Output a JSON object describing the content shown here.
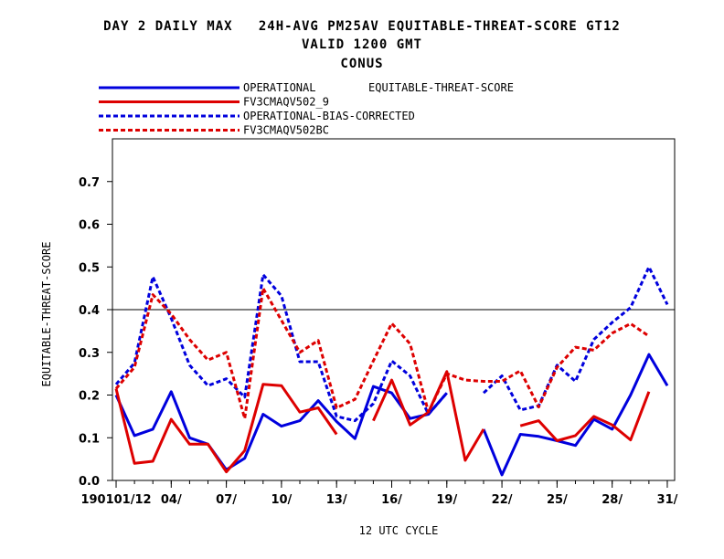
{
  "titles": {
    "line1": "DAY 2 DAILY MAX   24H-AVG PM25AV EQUITABLE-THREAT-SCORE GT12",
    "line2": "VALID 1200 GMT",
    "line3": "CONUS"
  },
  "chart_data": {
    "type": "line",
    "title": "DAY 2 DAILY MAX   24H-AVG PM25AV EQUITABLE-THREAT-SCORE GT12",
    "ylabel": "EQUITABLE-THREAT-SCORE",
    "xlabel": "12 UTC CYCLE",
    "legend_title": "EQUITABLE-THREAT-SCORE",
    "ylim": [
      0,
      0.8
    ],
    "yticks": [
      "0.0",
      "0.1",
      "0.2",
      "0.3",
      "0.4",
      "0.5",
      "0.6",
      "0.7"
    ],
    "yticks_values": [
      0,
      0.1,
      0.2,
      0.3,
      0.4,
      0.5,
      0.6,
      0.7
    ],
    "xlim": [
      0.8,
      31.4
    ],
    "x_ticks": [
      {
        "x": 1,
        "label": "190101/12"
      },
      {
        "x": 4,
        "label": "04/"
      },
      {
        "x": 7,
        "label": "07/"
      },
      {
        "x": 10,
        "label": "10/"
      },
      {
        "x": 13,
        "label": "13/"
      },
      {
        "x": 16,
        "label": "16/"
      },
      {
        "x": 19,
        "label": "19/"
      },
      {
        "x": 22,
        "label": "22/"
      },
      {
        "x": 25,
        "label": "25/"
      },
      {
        "x": 28,
        "label": "28/"
      },
      {
        "x": 31,
        "label": "31/"
      }
    ],
    "reference_line": 0.4,
    "legend_position": "top-left",
    "grid": false,
    "x": [
      1,
      2,
      3,
      4,
      5,
      6,
      7,
      8,
      9,
      10,
      11,
      12,
      13,
      14,
      15,
      16,
      17,
      18,
      19,
      20,
      21,
      22,
      23,
      24,
      25,
      26,
      27,
      28,
      29,
      30,
      31
    ],
    "series": [
      {
        "name": "OPERATIONAL",
        "color": "#0000dd",
        "dash": "solid",
        "values": [
          0.2,
          0.105,
          0.12,
          0.208,
          0.1,
          0.085,
          0.025,
          0.052,
          0.155,
          0.127,
          0.14,
          0.187,
          0.138,
          0.098,
          0.22,
          0.205,
          0.145,
          0.155,
          0.205,
          null,
          0.12,
          0.013,
          0.108,
          0.103,
          0.093,
          0.082,
          0.143,
          0.12,
          0.2,
          0.295,
          0.222
        ]
      },
      {
        "name": "FV3CMAQV502_9",
        "color": "#dd0000",
        "dash": "solid",
        "values": [
          0.215,
          0.04,
          0.045,
          0.143,
          0.085,
          0.085,
          0.02,
          0.07,
          0.225,
          0.222,
          0.16,
          0.17,
          0.108,
          null,
          0.14,
          0.235,
          0.13,
          0.16,
          0.255,
          0.047,
          0.12,
          null,
          0.128,
          0.14,
          0.093,
          0.105,
          0.15,
          0.13,
          0.095,
          0.208,
          null
        ]
      },
      {
        "name": "OPERATIONAL-BIAS-CORRECTED",
        "color": "#0000dd",
        "dash": "dashed",
        "values": [
          0.225,
          0.275,
          0.477,
          0.38,
          0.27,
          0.222,
          0.238,
          0.195,
          0.482,
          0.432,
          0.278,
          0.278,
          0.15,
          0.14,
          0.18,
          0.28,
          0.245,
          0.155,
          0.205,
          null,
          0.205,
          0.245,
          0.165,
          0.175,
          0.27,
          0.232,
          0.33,
          0.37,
          0.405,
          0.5,
          0.412
        ]
      },
      {
        "name": "FV3CMAQV502BC",
        "color": "#dd0000",
        "dash": "dashed",
        "values": [
          0.215,
          0.265,
          0.435,
          0.39,
          0.33,
          0.282,
          0.3,
          0.145,
          0.45,
          0.375,
          0.3,
          0.328,
          0.17,
          0.19,
          0.28,
          0.368,
          0.32,
          0.16,
          0.25,
          0.235,
          0.232,
          0.232,
          0.257,
          0.172,
          0.265,
          0.312,
          0.305,
          0.345,
          0.367,
          0.338,
          null
        ]
      }
    ]
  }
}
